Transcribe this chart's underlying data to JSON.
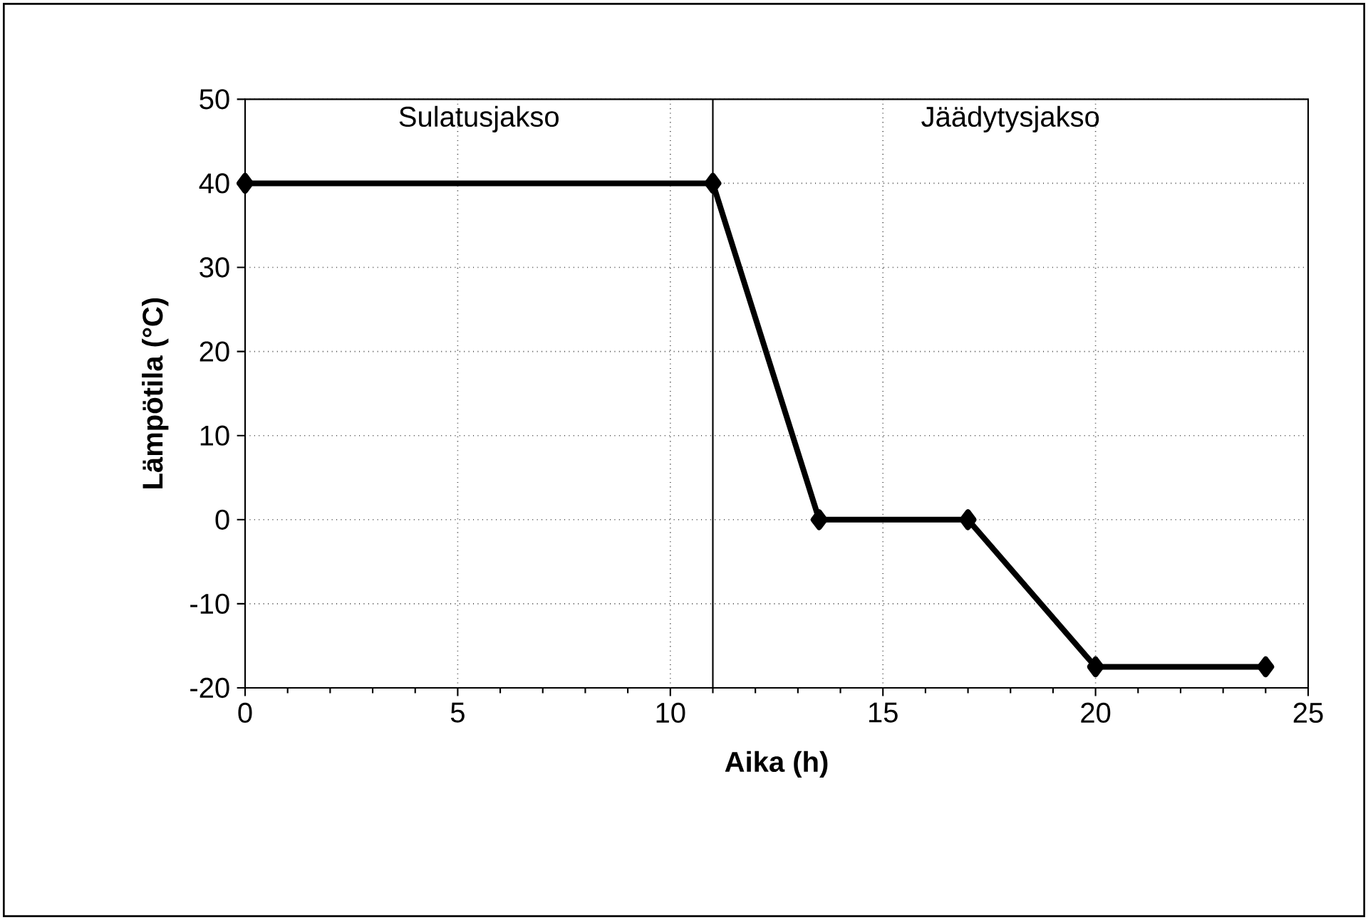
{
  "chart_data": {
    "type": "line",
    "xlabel": "Aika (h)",
    "ylabel": "Lämpötila (°C)",
    "x": [
      0,
      11,
      13.5,
      17,
      20,
      24
    ],
    "series": [
      {
        "color": "#000000",
        "values": [
          40,
          40,
          0,
          0,
          -17.5,
          -17.5
        ]
      }
    ],
    "xlim": [
      0,
      25
    ],
    "xticks": [
      0,
      5,
      10,
      15,
      20,
      25
    ],
    "ylim": [
      -20,
      50
    ],
    "yticks": [
      -20,
      -10,
      0,
      10,
      20,
      30,
      40,
      50
    ],
    "ref_lines": [
      {
        "axis": "x",
        "value": 11,
        "color": "#000000",
        "line_style": "solid"
      }
    ],
    "annotations": [
      "Sulatusjakso",
      "Jäädytysjakso"
    ],
    "grid": true,
    "marker": "diamond",
    "line_style": "solid"
  }
}
